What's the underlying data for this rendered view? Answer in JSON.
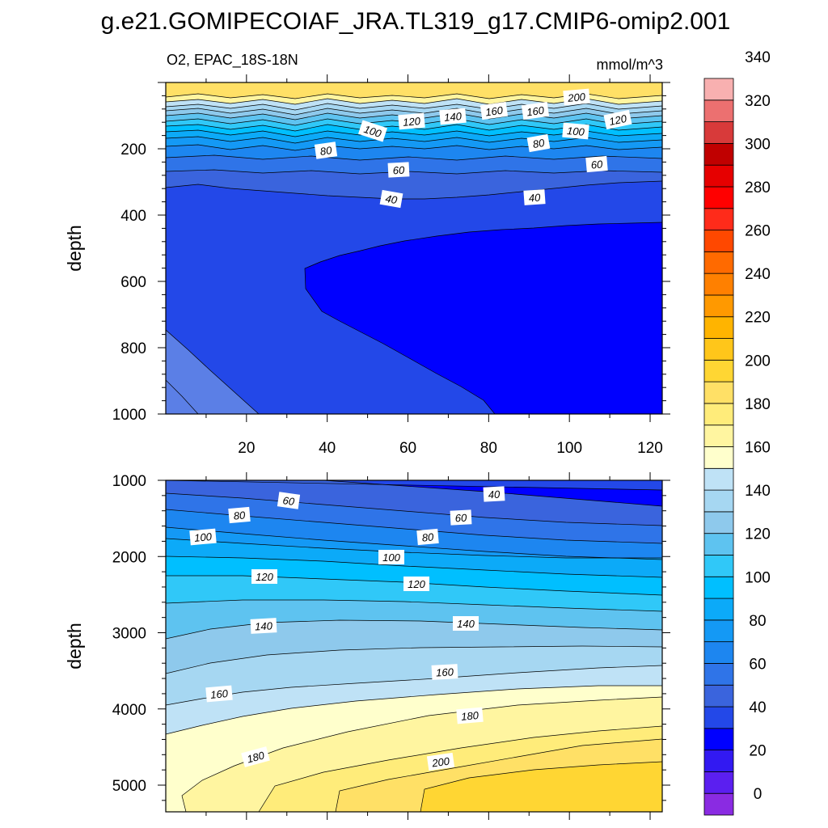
{
  "figure": {
    "title": "g.e21.GOMIPECOIAF_JRA.TL319_g17.CMIP6-omip2.001",
    "left_string": "O2, EPAC_18S-18N",
    "right_string": "mmol/m^3"
  },
  "colorbar": {
    "colors": [
      "#8a2be2",
      "#5b1ff0",
      "#3219f2",
      "#0000ff",
      "#2348e8",
      "#3a64dd",
      "#2f74e8",
      "#1d86f0",
      "#1499f5",
      "#0caaf8",
      "#00bfff",
      "#30c8f8",
      "#5ec3f0",
      "#8ec9ec",
      "#a6d7f2",
      "#bfe2f6",
      "#ffffcc",
      "#fff5a0",
      "#ffec7a",
      "#ffe066",
      "#ffd633",
      "#ffc61a",
      "#ffb400",
      "#ff9900",
      "#ff8000",
      "#ff6a00",
      "#ff4800",
      "#ff2b1a",
      "#ff0000",
      "#e60000",
      "#c00000",
      "#d83a3a",
      "#ec7070",
      "#f8b0b0"
    ],
    "labels": [
      "0",
      "20",
      "40",
      "60",
      "80",
      "100",
      "120",
      "140",
      "160",
      "180",
      "200",
      "220",
      "240",
      "260",
      "280",
      "300",
      "320",
      "340"
    ]
  },
  "chart_data": [
    {
      "type": "contour",
      "panel": "upper",
      "variable": "O2",
      "region": "EPAC_18S-18N",
      "units": "mmol/m^3",
      "ylabel": "depth",
      "xlabel": "",
      "xlim": [
        0,
        123
      ],
      "ylim": [
        1000,
        0
      ],
      "xticks": [
        "20",
        "40",
        "60",
        "80",
        "100",
        "120"
      ],
      "yticks": [
        "200",
        "400",
        "600",
        "800",
        "1000"
      ],
      "contour_interval": 10,
      "level_labels": [
        "200",
        "160",
        "160",
        "140",
        "120",
        "120",
        "100",
        "100",
        "80",
        "80",
        "60",
        "60",
        "40",
        "40"
      ]
    },
    {
      "type": "contour",
      "panel": "lower",
      "variable": "O2",
      "region": "EPAC_18S-18N",
      "units": "mmol/m^3",
      "ylabel": "depth",
      "xlabel": "",
      "xlim": [
        0,
        123
      ],
      "ylim": [
        5350,
        1000
      ],
      "yticks": [
        "1000",
        "2000",
        "3000",
        "4000",
        "5000"
      ],
      "contour_interval": 10,
      "level_labels": [
        "60",
        "40",
        "80",
        "60",
        "100",
        "80",
        "100",
        "120",
        "120",
        "140",
        "140",
        "160",
        "160",
        "180",
        "180",
        "200"
      ]
    }
  ]
}
